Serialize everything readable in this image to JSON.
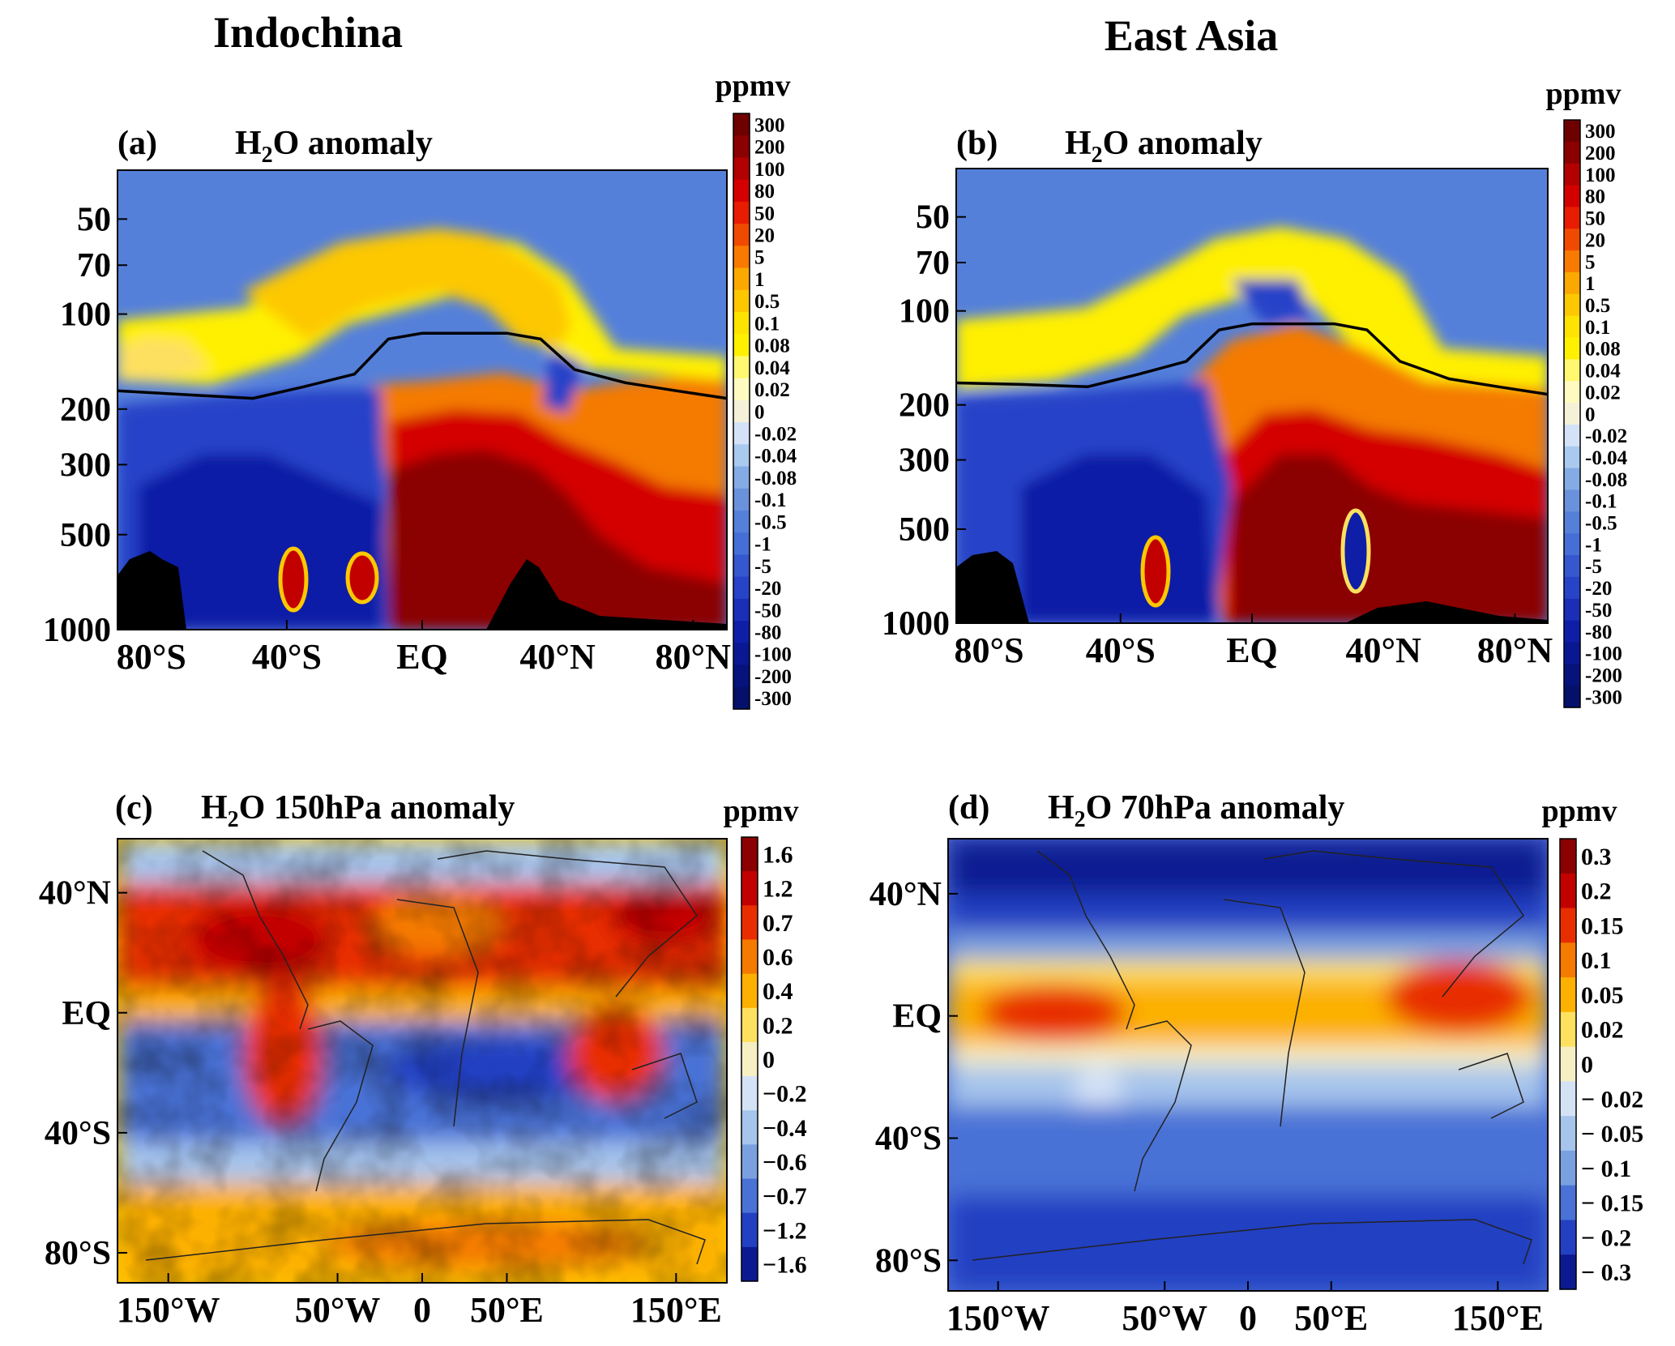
{
  "figure": {
    "column_titles": [
      "Indochina",
      "East Asia"
    ]
  },
  "chart_data": [
    {
      "id": "a",
      "type": "heatmap",
      "panel_label": "(a)",
      "title": "H2O anomaly",
      "title_parts": {
        "pre": "H",
        "sub": "2",
        "post": "O anomaly"
      },
      "xlabel": "",
      "ylabel": "",
      "x_ticks": [
        "80°S",
        "40°S",
        "EQ",
        "40°N",
        "80°N"
      ],
      "x_tick_values": [
        -80,
        -40,
        0,
        40,
        80
      ],
      "x_range": [
        -90,
        90
      ],
      "y_ticks": [
        "50",
        "70",
        "100",
        "200",
        "300",
        "500",
        "1000"
      ],
      "y_tick_values": [
        50,
        70,
        100,
        200,
        300,
        500,
        1000
      ],
      "y_scale": "log",
      "y_range": [
        35,
        1000
      ],
      "y_reversed": true,
      "colorbar": {
        "unit": "ppmv",
        "levels": [
          "300",
          "200",
          "100",
          "80",
          "50",
          "20",
          "5",
          "1",
          "0.5",
          "0.1",
          "0.08",
          "0.04",
          "0.02",
          "0",
          "-0.02",
          "-0.04",
          "-0.08",
          "-0.1",
          "-0.5",
          "-1",
          "-5",
          "-20",
          "-50",
          "-80",
          "-100",
          "-200",
          "-300"
        ],
        "colors": [
          "#6e0000",
          "#8b0000",
          "#b30000",
          "#d40000",
          "#e81c00",
          "#f04a00",
          "#f87a00",
          "#fba800",
          "#fdc800",
          "#fee300",
          "#fff000",
          "#fff870",
          "#fffbc0",
          "#f4f1d8",
          "#d3e2f6",
          "#aac9ee",
          "#84abe4",
          "#6a92dc",
          "#5580da",
          "#456fd6",
          "#3557d0",
          "#2743c8",
          "#1a2eb8",
          "#0e1ea6",
          "#091892",
          "#06137c",
          "#04106a"
        ]
      },
      "series": [
        {
          "name": "",
          "x": [
            -90,
            -70,
            -50,
            -35,
            -20,
            -10,
            0,
            15,
            25,
            35,
            45,
            60,
            75,
            90
          ],
          "y": [
            175,
            180,
            185,
            170,
            155,
            120,
            115,
            115,
            115,
            120,
            150,
            165,
            175,
            185
          ]
        }
      ],
      "field_summary": "negative (blue) water-vapour anomaly south of ~5°S and in the upper troposphere; positive (red to dark red) anomaly from EQ to 80°N below ~200 hPa; yellow positive band arching over the tropopause from ~150 hPa at high latitudes to ~70 hPa over the tropics; black terrain near 80°S and 30–50°N"
    },
    {
      "id": "b",
      "type": "heatmap",
      "panel_label": "(b)",
      "title": "H2O anomaly",
      "title_parts": {
        "pre": "H",
        "sub": "2",
        "post": "O anomaly"
      },
      "xlabel": "",
      "ylabel": "",
      "x_ticks": [
        "80°S",
        "40°S",
        "EQ",
        "40°N",
        "80°N"
      ],
      "x_tick_values": [
        -80,
        -40,
        0,
        40,
        80
      ],
      "x_range": [
        -90,
        90
      ],
      "y_ticks": [
        "50",
        "70",
        "100",
        "200",
        "300",
        "500",
        "1000"
      ],
      "y_tick_values": [
        50,
        70,
        100,
        200,
        300,
        500,
        1000
      ],
      "y_scale": "log",
      "y_range": [
        35,
        1000
      ],
      "y_reversed": true,
      "colorbar": {
        "unit": "ppmv",
        "levels": [
          "300",
          "200",
          "100",
          "80",
          "50",
          "20",
          "5",
          "1",
          "0.5",
          "0.1",
          "0.08",
          "0.04",
          "0.02",
          "0",
          "-0.02",
          "-0.04",
          "-0.08",
          "-0.1",
          "-0.5",
          "-1",
          "-5",
          "-20",
          "-50",
          "-80",
          "-100",
          "-200",
          "-300"
        ],
        "colors": [
          "#6e0000",
          "#8b0000",
          "#b30000",
          "#d40000",
          "#e81c00",
          "#f04a00",
          "#f87a00",
          "#fba800",
          "#fdc800",
          "#fee300",
          "#fff000",
          "#fff870",
          "#fffbc0",
          "#f4f1d8",
          "#d3e2f6",
          "#aac9ee",
          "#84abe4",
          "#6a92dc",
          "#5580da",
          "#456fd6",
          "#3557d0",
          "#2743c8",
          "#1a2eb8",
          "#0e1ea6",
          "#091892",
          "#06137c",
          "#04106a"
        ]
      },
      "series": [
        {
          "name": "",
          "x": [
            -90,
            -70,
            -50,
            -35,
            -20,
            -10,
            0,
            15,
            25,
            35,
            45,
            60,
            75,
            90
          ],
          "y": [
            170,
            172,
            175,
            160,
            145,
            115,
            110,
            110,
            110,
            115,
            145,
            165,
            175,
            185
          ]
        }
      ],
      "field_summary": "negative (blue) anomaly south of ~5°S; dark red positive anomaly between EQ and ~25°N and north of ~40°N below ~300 hPa with a blue intrusion near 35°N; yellow band arching from ~150 hPa at high latitudes to ~70 hPa over the tropics"
    },
    {
      "id": "c",
      "type": "heatmap",
      "panel_label": "(c)",
      "title": "H2O 150hPa anomaly",
      "title_parts": {
        "pre": "H",
        "sub": "2",
        "post": "O 150hPa anomaly"
      },
      "xlabel": "",
      "ylabel": "",
      "x_ticks": [
        "150°W",
        "50°W",
        "0",
        "50°E",
        "150°E"
      ],
      "x_tick_values": [
        -150,
        -50,
        0,
        50,
        150
      ],
      "x_range": [
        -180,
        180
      ],
      "y_ticks": [
        "40°N",
        "EQ",
        "40°S",
        "80°S"
      ],
      "y_tick_values": [
        40,
        0,
        -40,
        -80
      ],
      "y_range": [
        -90,
        58
      ],
      "colorbar": {
        "unit": "ppmv",
        "levels": [
          "1.6",
          "1.2",
          "0.7",
          "0.6",
          "0.4",
          "0.2",
          "0",
          "−0.2",
          "−0.4",
          "−0.6",
          "−0.7",
          "−1.2",
          "−1.6"
        ],
        "colors": [
          "#8b0000",
          "#c20000",
          "#e82e00",
          "#f47a00",
          "#fcb000",
          "#fde060",
          "#f6efc4",
          "#d4e2f6",
          "#a6c4ec",
          "#7aa0e0",
          "#4a72d6",
          "#2440c2",
          "#0c1a92"
        ]
      },
      "field_summary": "positive (red) anomaly across 10–50°N and over South America; negative (blue) band around 5–35°S across Atlantic, Africa and Indian Ocean; positive (yellow/orange) south of ~50°S"
    },
    {
      "id": "d",
      "type": "heatmap",
      "panel_label": "(d)",
      "title": "H2O 70hPa anomaly",
      "title_parts": {
        "pre": "H",
        "sub": "2",
        "post": "O 70hPa anomaly"
      },
      "xlabel": "",
      "ylabel": "",
      "x_ticks": [
        "150°W",
        "50°W",
        "0",
        "50°E",
        "150°E"
      ],
      "x_tick_values": [
        -150,
        -50,
        0,
        50,
        150
      ],
      "x_range": [
        -180,
        180
      ],
      "y_ticks": [
        "40°N",
        "EQ",
        "40°S",
        "80°S"
      ],
      "y_tick_values": [
        40,
        0,
        -40,
        -80
      ],
      "y_range": [
        -90,
        58
      ],
      "colorbar": {
        "unit": "ppmv",
        "levels": [
          "0.3",
          "0.2",
          "0.15",
          "0.1",
          "0.05",
          "0.02",
          "0",
          "− 0.02",
          "− 0.05",
          "− 0.1",
          "− 0.15",
          "− 0.2",
          "− 0.3"
        ],
        "colors": [
          "#8b0000",
          "#c20000",
          "#e82e00",
          "#f47a00",
          "#fcb000",
          "#fde060",
          "#f6efc4",
          "#d4e2f6",
          "#a6c4ec",
          "#7aa0e0",
          "#4a72d6",
          "#2440c2",
          "#0c1a92"
        ]
      },
      "field_summary": "positive (yellow to red) band between ~10°S and ~25°N, strongest over the Maritime Continent; negative (blue) elsewhere, strongest (dark blue) north of ~40°N and south of ~70°S"
    }
  ]
}
